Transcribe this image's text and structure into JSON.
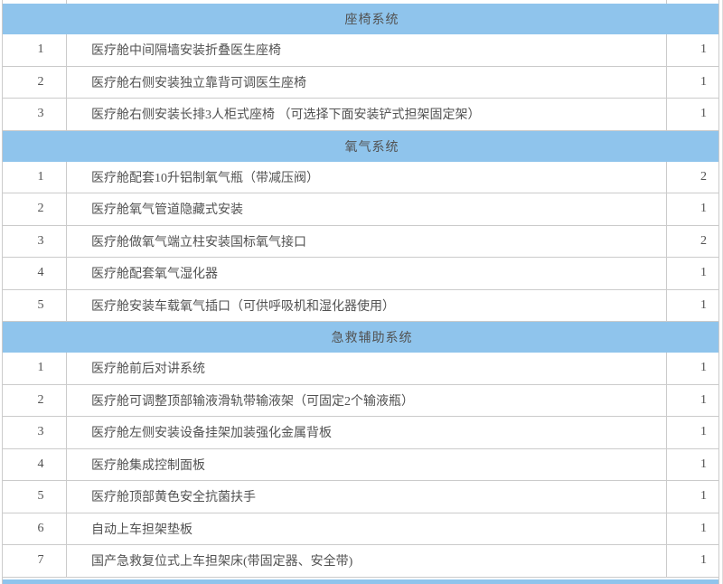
{
  "colors": {
    "header_bg": "#8fc4ec",
    "border": "#cbcbcb",
    "text": "#525252"
  },
  "table": {
    "sections": [
      {
        "title": "座椅系统",
        "rows": [
          {
            "no": "1",
            "desc": "医疗舱中间隔墙安装折叠医生座椅",
            "qty": "1"
          },
          {
            "no": "2",
            "desc": "医疗舱右侧安装独立靠背可调医生座椅",
            "qty": "1"
          },
          {
            "no": "3",
            "desc": "医疗舱右侧安装长排3人柜式座椅 （可选择下面安装铲式担架固定架）",
            "qty": "1"
          }
        ]
      },
      {
        "title": "氧气系统",
        "rows": [
          {
            "no": "1",
            "desc": "医疗舱配套10升铝制氧气瓶（带减压阀）",
            "qty": "2"
          },
          {
            "no": "2",
            "desc": "医疗舱氧气管道隐藏式安装",
            "qty": "1"
          },
          {
            "no": "3",
            "desc": "医疗舱做氧气端立柱安装国标氧气接口",
            "qty": "2"
          },
          {
            "no": "4",
            "desc": "医疗舱配套氧气湿化器",
            "qty": "1"
          },
          {
            "no": "5",
            "desc": "医疗舱安装车载氧气插口（可供呼吸机和湿化器使用）",
            "qty": "1"
          }
        ]
      },
      {
        "title": "急救辅助系统",
        "rows": [
          {
            "no": "1",
            "desc": "医疗舱前后对讲系统",
            "qty": "1"
          },
          {
            "no": "2",
            "desc": "医疗舱可调整顶部输液滑轨带输液架（可固定2个输液瓶）",
            "qty": "1"
          },
          {
            "no": "3",
            "desc": "医疗舱左侧安装设备挂架加装强化金属背板",
            "qty": "1"
          },
          {
            "no": "4",
            "desc": "医疗舱集成控制面板",
            "qty": "1"
          },
          {
            "no": "5",
            "desc": "医疗舱顶部黄色安全抗菌扶手",
            "qty": "1"
          },
          {
            "no": "6",
            "desc": "自动上车担架垫板",
            "qty": "1"
          },
          {
            "no": "7",
            "desc": "国产急救复位式上车担架床(带固定器、安全带)",
            "qty": "1"
          }
        ]
      }
    ]
  }
}
